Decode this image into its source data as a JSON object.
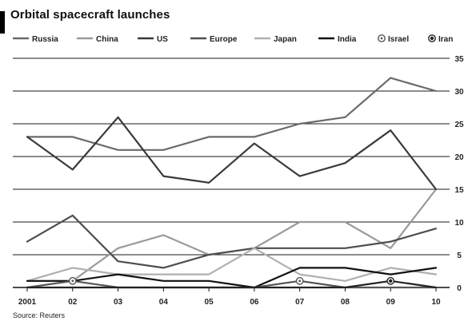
{
  "chart_data": {
    "type": "line",
    "title": "Orbital spacecraft launches",
    "source": "Source: Reuters",
    "x": [
      2001,
      2002,
      2003,
      2004,
      2005,
      2006,
      2007,
      2008,
      2009,
      2010
    ],
    "xticklabels": [
      "2001",
      "02",
      "03",
      "04",
      "05",
      "06",
      "07",
      "08",
      "09",
      "10"
    ],
    "ylim": [
      0,
      35
    ],
    "yticks": [
      0,
      5,
      10,
      15,
      20,
      25,
      30,
      35
    ],
    "grid": true,
    "legend_position": "top",
    "series": [
      {
        "name": "Russia",
        "color": "#6a6a6a",
        "values": [
          23,
          23,
          21,
          21,
          23,
          23,
          25,
          26,
          32,
          30
        ]
      },
      {
        "name": "China",
        "color": "#9a9a9a",
        "values": [
          1,
          1,
          6,
          8,
          5,
          6,
          10,
          10,
          6,
          15
        ]
      },
      {
        "name": "US",
        "color": "#3a3a3a",
        "values": [
          23,
          18,
          26,
          17,
          16,
          22,
          17,
          19,
          24,
          15
        ]
      },
      {
        "name": "Europe",
        "color": "#4e4e4e",
        "values": [
          7,
          11,
          4,
          3,
          5,
          6,
          6,
          6,
          7,
          9
        ]
      },
      {
        "name": "Japan",
        "color": "#b0b0b0",
        "values": [
          1,
          3,
          2,
          2,
          2,
          6,
          2,
          1,
          3,
          2
        ]
      },
      {
        "name": "India",
        "color": "#111111",
        "values": [
          1,
          1,
          2,
          1,
          1,
          0,
          3,
          3,
          2,
          3
        ]
      },
      {
        "name": "Israel",
        "color": "#555555",
        "marker": "circle-dot",
        "values": [
          0,
          1,
          0,
          0,
          0,
          0,
          1,
          0,
          0,
          0
        ]
      },
      {
        "name": "Iran",
        "color": "#222222",
        "marker": "circle-dot-filled",
        "values": [
          0,
          0,
          0,
          0,
          0,
          0,
          0,
          0,
          1,
          0
        ]
      }
    ]
  }
}
